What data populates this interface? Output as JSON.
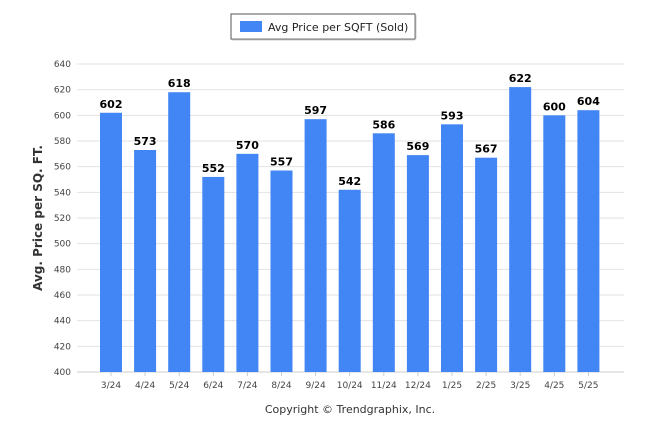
{
  "chart_data": {
    "type": "bar",
    "legend": {
      "label": "Avg Price per SQFT (Sold)",
      "position": "top"
    },
    "ylabel": "Avg. Price per SQ. FT.",
    "xlabel": "",
    "ylim": [
      400,
      640
    ],
    "ytick_step": 20,
    "grid": true,
    "categories": [
      "3/24",
      "4/24",
      "5/24",
      "6/24",
      "7/24",
      "8/24",
      "9/24",
      "10/24",
      "11/24",
      "12/24",
      "1/25",
      "2/25",
      "3/25",
      "4/25",
      "5/25"
    ],
    "values": [
      602,
      573,
      618,
      552,
      570,
      557,
      597,
      542,
      586,
      569,
      593,
      567,
      622,
      600,
      604
    ],
    "bar_color": "#4285f4"
  },
  "footer": "Copyright © Trendgraphix, Inc."
}
